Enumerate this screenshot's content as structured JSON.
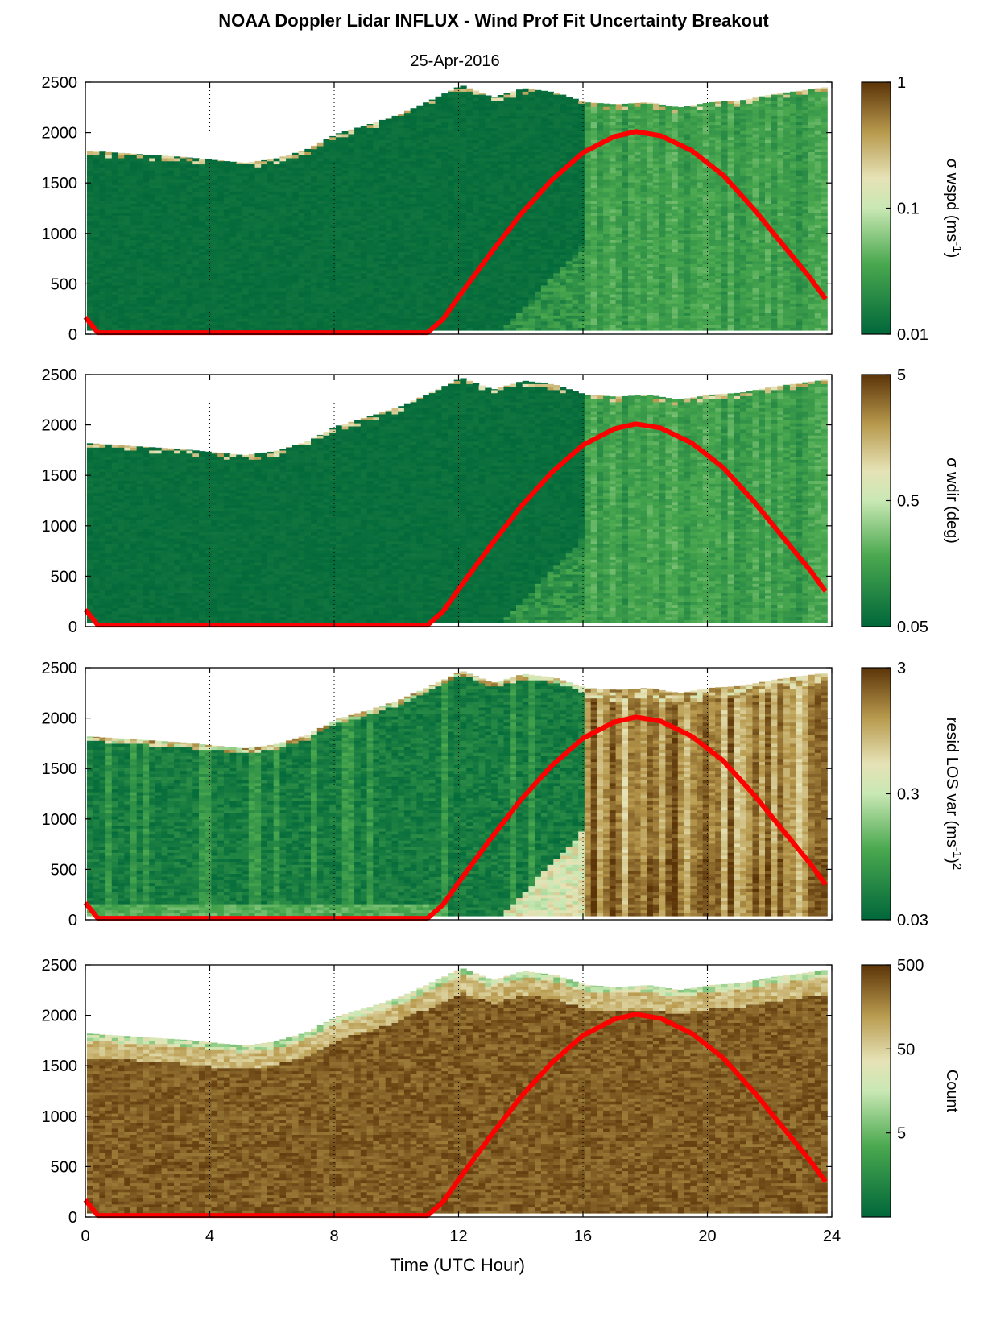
{
  "figure": {
    "title": "NOAA Doppler Lidar INFLUX - Wind Prof Fit Uncertainty Breakout",
    "subtitle": "25-Apr-2016",
    "xlabel": "Time (UTC Hour)"
  },
  "colors": {
    "green_dark": "#00673a",
    "green_mid": "#4aa84f",
    "green_light": "#c9e8b4",
    "cream": "#e6e2b6",
    "tan": "#b89a4e",
    "brown_dark": "#5b3408",
    "sun_curve": "#ff0000"
  },
  "chart_data": [
    {
      "type": "heatmap",
      "name": "wspd",
      "x_ticks": [
        0,
        4,
        8,
        12,
        16,
        20,
        24
      ],
      "xlim": [
        0,
        24
      ],
      "ylim": [
        0,
        2500
      ],
      "y_ticks": [
        0,
        500,
        1000,
        1500,
        2000,
        2500
      ],
      "colorbar": {
        "label": "σ wspd (ms-1)",
        "label_main": "σ wspd (ms",
        "label_sup": "-1",
        "label_end": ")",
        "scale": "log",
        "range": [
          0.01,
          1
        ],
        "ticks": [
          "0.01",
          "0.1",
          "1"
        ]
      },
      "mode": "wspd"
    },
    {
      "type": "heatmap",
      "name": "wdir",
      "x_ticks": [
        0,
        4,
        8,
        12,
        16,
        20,
        24
      ],
      "xlim": [
        0,
        24
      ],
      "ylim": [
        0,
        2500
      ],
      "y_ticks": [
        0,
        500,
        1000,
        1500,
        2000,
        2500
      ],
      "colorbar": {
        "label": "σ wdir (deg)",
        "label_main": "σ wdir (deg)",
        "label_sup": "",
        "label_end": "",
        "scale": "log",
        "range": [
          0.05,
          5
        ],
        "ticks": [
          "0.05",
          "0.5",
          "5"
        ]
      },
      "mode": "wdir"
    },
    {
      "type": "heatmap",
      "name": "resid",
      "x_ticks": [
        0,
        4,
        8,
        12,
        16,
        20,
        24
      ],
      "xlim": [
        0,
        24
      ],
      "ylim": [
        0,
        2500
      ],
      "y_ticks": [
        0,
        500,
        1000,
        1500,
        2000,
        2500
      ],
      "colorbar": {
        "label": "resid LOS var (ms-1)2",
        "label_main": "resid LOS var (ms",
        "label_sup": "-1",
        "label_end": ")",
        "label_sup2": "2",
        "scale": "log",
        "range": [
          0.03,
          3
        ],
        "ticks": [
          "0.03",
          "0.3",
          "3"
        ]
      },
      "mode": "resid"
    },
    {
      "type": "heatmap",
      "name": "count",
      "x_ticks": [
        0,
        4,
        8,
        12,
        16,
        20,
        24
      ],
      "xlim": [
        0,
        24
      ],
      "ylim": [
        0,
        2500
      ],
      "y_ticks": [
        0,
        500,
        1000,
        1500,
        2000,
        2500
      ],
      "colorbar": {
        "label": "Count",
        "label_main": "Count",
        "label_sup": "",
        "label_end": "",
        "scale": "log",
        "range": [
          0.5,
          500
        ],
        "ticks": [
          "5",
          "50",
          "500"
        ]
      },
      "mode": "count"
    }
  ],
  "sun_elevation_curve": {
    "color": "#ff0000",
    "x": [
      0.0,
      0.4,
      1,
      2,
      4,
      6,
      8,
      10,
      11.0,
      11.5,
      12,
      13,
      14,
      15,
      16,
      17,
      17.7,
      18.5,
      19.5,
      20.5,
      21.5,
      22.5,
      23.3,
      23.8
    ],
    "y": [
      170,
      15,
      15,
      15,
      15,
      15,
      15,
      15,
      15,
      150,
      370,
      790,
      1190,
      1530,
      1800,
      1960,
      2010,
      1970,
      1820,
      1580,
      1240,
      860,
      560,
      350
    ]
  },
  "data_top_profile": {
    "hours": [
      0,
      1,
      2,
      3,
      4,
      5,
      6,
      7,
      8,
      9,
      10,
      11,
      12,
      13,
      14,
      15,
      16,
      17,
      18,
      19,
      20,
      21,
      22,
      23,
      23.7
    ],
    "height": [
      1820,
      1800,
      1780,
      1760,
      1730,
      1700,
      1740,
      1830,
      1990,
      2080,
      2180,
      2320,
      2470,
      2350,
      2440,
      2400,
      2300,
      2280,
      2300,
      2250,
      2300,
      2320,
      2380,
      2420,
      2450
    ]
  }
}
